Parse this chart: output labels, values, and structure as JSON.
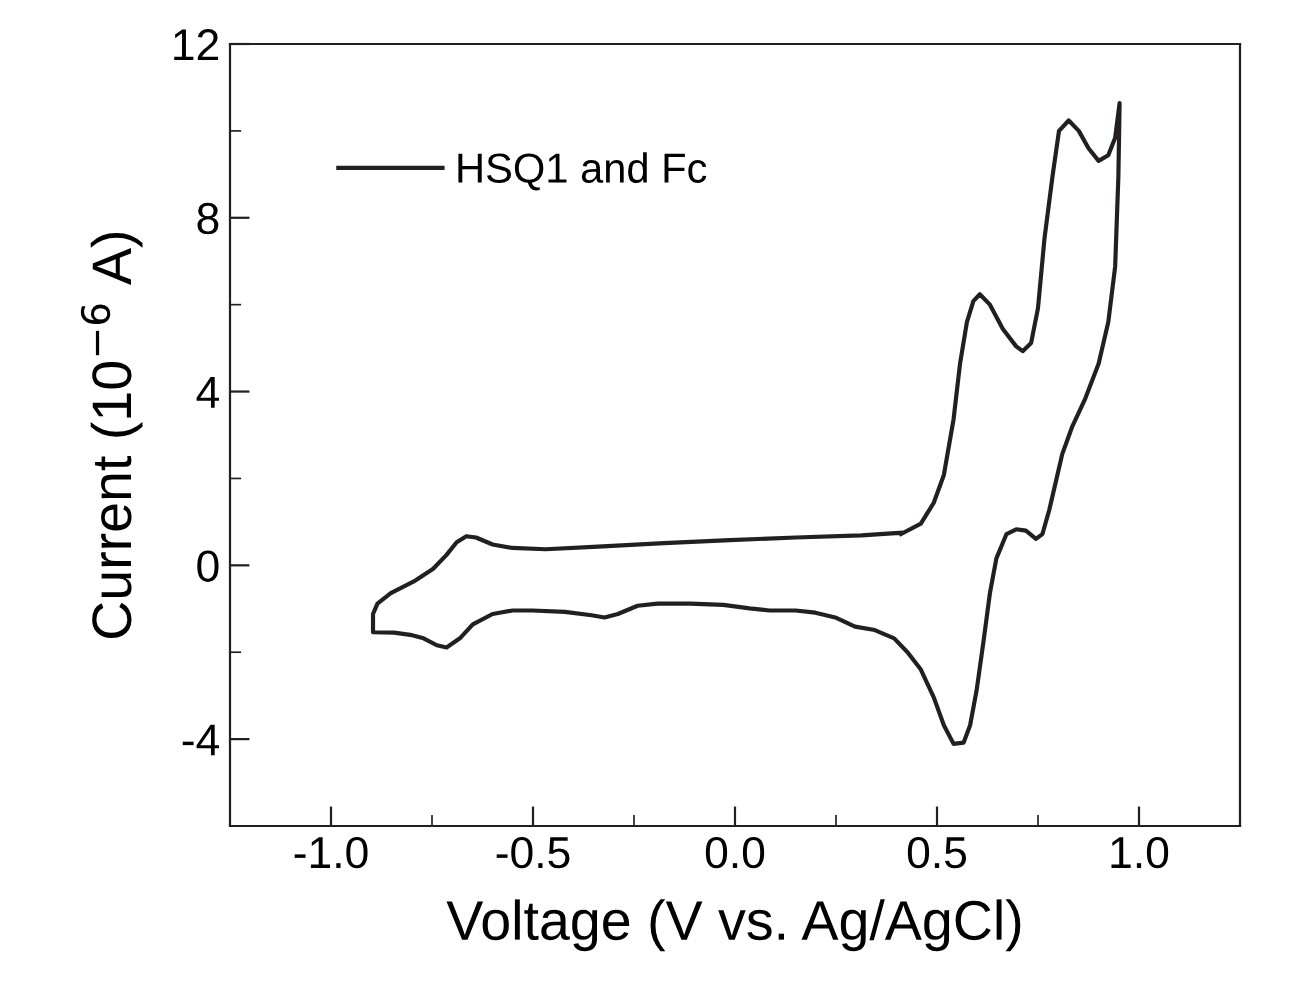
{
  "chart_data": {
    "type": "line",
    "xlabel": "Voltage (V vs. Ag/AgCl)",
    "ylabel": "Current (10$^{−6}$ A)",
    "xlim": [
      -1.25,
      1.25
    ],
    "ylim": [
      -6,
      12
    ],
    "xticks": [
      {
        "value": -1.0,
        "label": "-1.0"
      },
      {
        "value": -0.75,
        "label": null
      },
      {
        "value": -0.5,
        "label": "-0.5"
      },
      {
        "value": -0.25,
        "label": null
      },
      {
        "value": 0.0,
        "label": "0.0"
      },
      {
        "value": 0.25,
        "label": null
      },
      {
        "value": 0.5,
        "label": "0.5"
      },
      {
        "value": 0.75,
        "label": null
      },
      {
        "value": 1.0,
        "label": "1.0"
      }
    ],
    "yticks": [
      {
        "value": -4,
        "label": "-4"
      },
      {
        "value": -2,
        "label": null
      },
      0,
      {
        "value": 2,
        "label": null
      },
      4,
      {
        "value": 6,
        "label": null
      },
      8,
      {
        "value": 10,
        "label": null
      },
      12
    ],
    "legend": "top left",
    "grid": false,
    "marker": "none",
    "line_style": "solid",
    "series": [
      {
        "name": "HSQ1 and Fc",
        "color": "#231f20",
        "x": [
          0.411,
          0.46,
          0.492,
          0.517,
          0.541,
          0.557,
          0.574,
          0.59,
          0.606,
          0.631,
          0.663,
          0.696,
          0.712,
          0.733,
          0.75,
          0.766,
          0.786,
          0.802,
          0.826,
          0.851,
          0.875,
          0.9,
          0.924,
          0.941,
          0.952,
          0.949,
          0.941,
          0.924,
          0.9,
          0.867,
          0.835,
          0.81,
          0.794,
          0.778,
          0.761,
          0.745,
          0.72,
          0.696,
          0.672,
          0.647,
          0.631,
          0.615,
          0.598,
          0.582,
          0.566,
          0.541,
          0.517,
          0.492,
          0.46,
          0.427,
          0.394,
          0.346,
          0.297,
          0.248,
          0.199,
          0.15,
          0.085,
          0.036,
          -0.029,
          -0.111,
          -0.192,
          -0.241,
          -0.29,
          -0.323,
          -0.355,
          -0.421,
          -0.502,
          -0.551,
          -0.6,
          -0.649,
          -0.681,
          -0.714,
          -0.738,
          -0.771,
          -0.804,
          -0.844,
          -0.896,
          -0.896,
          -0.885,
          -0.852,
          -0.795,
          -0.747,
          -0.714,
          -0.689,
          -0.665,
          -0.641,
          -0.6,
          -0.551,
          -0.469,
          -0.339,
          -0.176,
          -0.013,
          0.15,
          0.313,
          0.411
        ],
        "values": [
          0.72,
          0.96,
          1.44,
          2.08,
          3.36,
          4.64,
          5.6,
          6.08,
          6.24,
          6.0,
          5.44,
          5.04,
          4.93,
          5.12,
          5.92,
          7.52,
          8.96,
          10.0,
          10.24,
          10.0,
          9.6,
          9.31,
          9.44,
          9.84,
          10.64,
          8.96,
          6.88,
          5.6,
          4.64,
          3.84,
          3.2,
          2.56,
          1.92,
          1.28,
          0.72,
          0.61,
          0.8,
          0.83,
          0.72,
          0.16,
          -0.64,
          -1.76,
          -2.88,
          -3.68,
          -4.08,
          -4.11,
          -3.68,
          -3.04,
          -2.4,
          -2.0,
          -1.68,
          -1.49,
          -1.41,
          -1.2,
          -1.09,
          -1.04,
          -1.04,
          -0.99,
          -0.91,
          -0.88,
          -0.88,
          -0.93,
          -1.12,
          -1.2,
          -1.15,
          -1.07,
          -1.04,
          -1.04,
          -1.12,
          -1.36,
          -1.68,
          -1.89,
          -1.84,
          -1.68,
          -1.6,
          -1.55,
          -1.54,
          -1.12,
          -0.88,
          -0.64,
          -0.37,
          -0.08,
          0.24,
          0.53,
          0.67,
          0.64,
          0.48,
          0.4,
          0.37,
          0.43,
          0.51,
          0.58,
          0.64,
          0.69,
          0.75
        ]
      }
    ]
  }
}
